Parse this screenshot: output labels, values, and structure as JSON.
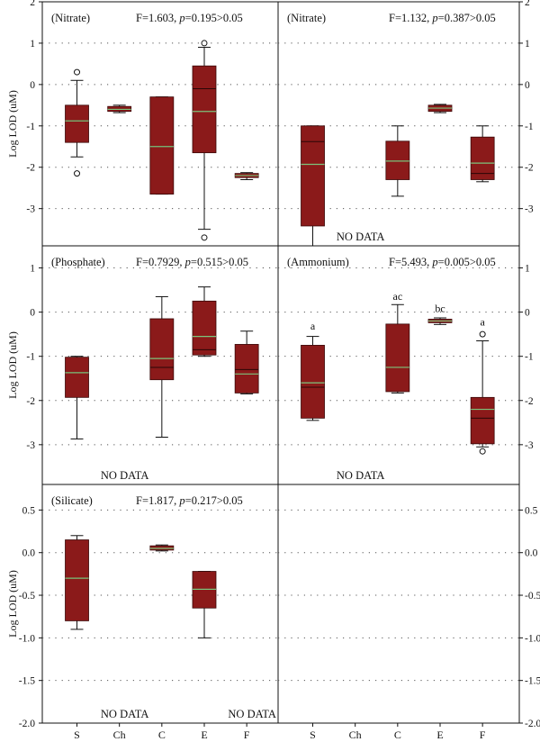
{
  "colors": {
    "box": "#8b1a1a",
    "box_edge": "#3a0808",
    "median": "#e8d55a",
    "mean": "#7cc47c",
    "whisker": "#111111",
    "grid": "#555555"
  },
  "ylabel": "Log LOD (uM)",
  "categories": [
    "S",
    "Ch",
    "C",
    "E",
    "F"
  ],
  "chart_data": [
    {
      "type": "box",
      "panel": "Nitrate (left)",
      "label": "(Nitrate)",
      "stat": {
        "F": "F=1.603",
        "sep": ",",
        "p_sym": "p",
        "p_rest": "=0.195>0.05"
      },
      "ylim": [
        -3.9,
        2
      ],
      "yticks": [
        "2",
        "1",
        "0",
        "-1",
        "-2",
        "-3"
      ],
      "ytick_values": [
        2,
        1,
        0,
        -1,
        -2,
        -3
      ],
      "tick_side": "left",
      "boxes": [
        {
          "cat": "S",
          "min": -1.75,
          "q1": -1.4,
          "median": -0.88,
          "mean": -0.88,
          "q3": -0.5,
          "max": 0.1,
          "outliers": [
            0.3,
            -2.15
          ]
        },
        {
          "cat": "Ch",
          "min": -0.68,
          "q1": -0.65,
          "median": -0.6,
          "mean": -0.6,
          "q3": -0.53,
          "max": -0.5,
          "outliers": []
        },
        {
          "cat": "C",
          "min": -2.65,
          "q1": -2.65,
          "median": -1.5,
          "mean": -1.5,
          "q3": -0.3,
          "max": -0.3,
          "outliers": []
        },
        {
          "cat": "E",
          "min": -3.5,
          "q1": -1.65,
          "median": -0.1,
          "mean": -0.65,
          "q3": 0.45,
          "max": 0.9,
          "outliers": [
            1.0,
            -3.7
          ]
        },
        {
          "cat": "F",
          "min": -2.3,
          "q1": -2.25,
          "median": -2.2,
          "mean": -2.2,
          "q3": -2.15,
          "max": -2.13,
          "outliers": []
        }
      ],
      "letters": [],
      "no_data": []
    },
    {
      "type": "box",
      "panel": "Nitrate (right)",
      "label": "(Nitrate)",
      "stat": {
        "F": "F=1.132",
        "sep": ",",
        "p_sym": "p",
        "p_rest": "=0.387>0.05"
      },
      "ylim": [
        -3.9,
        2
      ],
      "yticks": [
        "2",
        "1",
        "0",
        "-1",
        "-2",
        "-3"
      ],
      "ytick_values": [
        2,
        1,
        0,
        -1,
        -2,
        -3
      ],
      "tick_side": "right",
      "boxes": [
        {
          "cat": "S",
          "min": -3.9,
          "q1": -3.42,
          "median": -1.38,
          "mean": -1.93,
          "q3": -1.0,
          "max": -1.0,
          "outliers": []
        },
        {
          "cat": "C",
          "min": -2.7,
          "q1": -2.3,
          "median": -1.85,
          "mean": -1.85,
          "q3": -1.37,
          "max": -1.0,
          "outliers": []
        },
        {
          "cat": "E",
          "min": -0.68,
          "q1": -0.65,
          "median": -0.57,
          "mean": -0.57,
          "q3": -0.5,
          "max": -0.48,
          "outliers": []
        },
        {
          "cat": "F",
          "min": -2.35,
          "q1": -2.3,
          "median": -2.15,
          "mean": -1.9,
          "q3": -1.27,
          "max": -1.0,
          "outliers": []
        }
      ],
      "letters": [],
      "no_data": [
        {
          "text": "NO DATA",
          "cat": "Ch"
        }
      ]
    },
    {
      "type": "box",
      "panel": "Phosphate",
      "label": "(Phosphate)",
      "stat": {
        "F": "F=0.7929",
        "sep": ",",
        "p_sym": "p",
        "p_rest": "=0.515>0.05"
      },
      "ylim": [
        -3.9,
        1.5
      ],
      "yticks": [
        "1",
        "0",
        "-1",
        "-2",
        "-3"
      ],
      "ytick_values": [
        1,
        0,
        -1,
        -2,
        -3
      ],
      "tick_side": "left",
      "boxes": [
        {
          "cat": "S",
          "min": -2.87,
          "q1": -1.93,
          "median": -1.37,
          "mean": -1.37,
          "q3": -1.02,
          "max": -1.0,
          "outliers": []
        },
        {
          "cat": "C",
          "min": -2.83,
          "q1": -1.53,
          "median": -1.25,
          "mean": -1.05,
          "q3": -0.15,
          "max": 0.35,
          "outliers": []
        },
        {
          "cat": "E",
          "min": -1.0,
          "q1": -0.97,
          "median": -0.85,
          "mean": -0.55,
          "q3": 0.25,
          "max": 0.57,
          "outliers": []
        },
        {
          "cat": "F",
          "min": -1.85,
          "q1": -1.83,
          "median": -1.3,
          "mean": -1.4,
          "q3": -0.73,
          "max": -0.43,
          "outliers": []
        }
      ],
      "letters": [],
      "no_data": [
        {
          "text": "NO DATA",
          "cat": "Ch"
        }
      ]
    },
    {
      "type": "box",
      "panel": "Ammonium",
      "label": "(Ammonium)",
      "stat": {
        "F": "F=5.493",
        "sep": ",",
        "p_sym": "p",
        "p_rest": "=0.005>0.05"
      },
      "ylim": [
        -3.9,
        1.5
      ],
      "yticks": [
        "1",
        "0",
        "-1",
        "-2",
        "-3"
      ],
      "ytick_values": [
        1,
        0,
        -1,
        -2,
        -3
      ],
      "tick_side": "right",
      "boxes": [
        {
          "cat": "S",
          "min": -2.45,
          "q1": -2.4,
          "median": -1.7,
          "mean": -1.6,
          "q3": -0.75,
          "max": -0.55,
          "outliers": []
        },
        {
          "cat": "C",
          "min": -1.83,
          "q1": -1.8,
          "median": -1.25,
          "mean": -1.25,
          "q3": -0.27,
          "max": 0.17,
          "outliers": []
        },
        {
          "cat": "E",
          "min": -0.28,
          "q1": -0.24,
          "median": -0.2,
          "mean": -0.2,
          "q3": -0.16,
          "max": -0.13,
          "outliers": []
        },
        {
          "cat": "F",
          "min": -3.05,
          "q1": -2.98,
          "median": -2.4,
          "mean": -2.2,
          "q3": -1.93,
          "max": -0.65,
          "outliers": [
            -0.5,
            -3.15
          ]
        }
      ],
      "letters": [
        {
          "cat": "S",
          "text": "a",
          "y": -0.4
        },
        {
          "cat": "C",
          "text": "ac",
          "y": 0.28
        },
        {
          "cat": "E",
          "text": "bc",
          "y": 0.0
        },
        {
          "cat": "F",
          "text": "a",
          "y": -0.3
        }
      ],
      "no_data": [
        {
          "text": "NO DATA",
          "cat": "Ch"
        }
      ]
    },
    {
      "type": "box",
      "panel": "Silicate",
      "label": "(Silicate)",
      "stat": {
        "F": "F=1.817",
        "sep": ",",
        "p_sym": "p",
        "p_rest": "=0.217>0.05"
      },
      "ylim": [
        -2.0,
        0.8
      ],
      "yticks": [
        "0.5",
        "0.0",
        "-0.5",
        "-1.0",
        "-1.5",
        "-2.0"
      ],
      "ytick_values": [
        0.5,
        0.0,
        -0.5,
        -1.0,
        -1.5,
        -2.0
      ],
      "tick_side": "left",
      "boxes": [
        {
          "cat": "S",
          "min": -0.9,
          "q1": -0.8,
          "median": -0.3,
          "mean": -0.3,
          "q3": 0.15,
          "max": 0.2,
          "outliers": []
        },
        {
          "cat": "C",
          "min": 0.02,
          "q1": 0.03,
          "median": 0.05,
          "mean": 0.05,
          "q3": 0.08,
          "max": 0.09,
          "outliers": []
        },
        {
          "cat": "E",
          "min": -1.0,
          "q1": -0.65,
          "median": -0.43,
          "mean": -0.43,
          "q3": -0.22,
          "max": -0.22,
          "outliers": []
        }
      ],
      "letters": [],
      "no_data": [
        {
          "text": "NO DATA",
          "cat": "Ch"
        },
        {
          "text": "NO DATA",
          "cat": "F"
        }
      ]
    },
    {
      "type": "box",
      "panel": "Empty",
      "label": "",
      "stat": null,
      "ylim": [
        -2.0,
        0.8
      ],
      "yticks": [
        "0.5",
        "0.0",
        "-0.5",
        "-1.0",
        "-1.5",
        "-2.0"
      ],
      "ytick_values": [
        0.5,
        0.0,
        -0.5,
        -1.0,
        -1.5,
        -2.0
      ],
      "tick_side": "right",
      "boxes": [],
      "letters": [],
      "no_data": []
    }
  ]
}
